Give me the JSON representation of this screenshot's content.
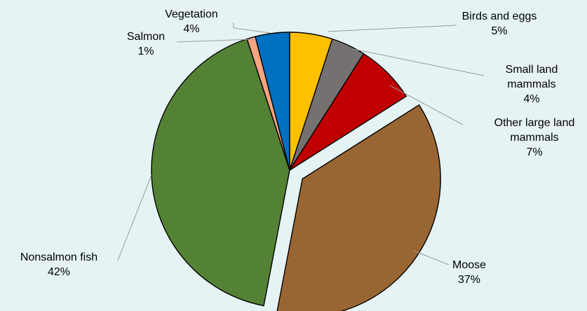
{
  "chart_data": {
    "type": "pie",
    "title": "",
    "unit": "%",
    "slices": [
      {
        "name": "Birds and eggs",
        "value": 5,
        "label_line1": "Birds and eggs",
        "label_line2": "",
        "pct_label": "5%",
        "color": "#ffc000",
        "exploded": false
      },
      {
        "name": "Small land mammals",
        "value": 4,
        "label_line1": "Small land",
        "label_line2": "mammals",
        "pct_label": "4%",
        "color": "#767171",
        "exploded": false
      },
      {
        "name": "Other large land mammals",
        "value": 7,
        "label_line1": "Other large land",
        "label_line2": "mammals",
        "pct_label": "7%",
        "color": "#c00000",
        "exploded": false
      },
      {
        "name": "Moose",
        "value": 37,
        "label_line1": "Moose",
        "label_line2": "",
        "pct_label": "37%",
        "color": "#996633",
        "exploded": true
      },
      {
        "name": "Nonsalmon fish",
        "value": 42,
        "label_line1": "Nonsalmon fish",
        "label_line2": "",
        "pct_label": "42%",
        "color": "#548235",
        "exploded": false
      },
      {
        "name": "Salmon",
        "value": 1,
        "label_line1": "Salmon",
        "label_line2": "",
        "pct_label": "1%",
        "color": "#f4a582",
        "exploded": false
      },
      {
        "name": "Vegetation",
        "value": 4,
        "label_line1": "Vegetation",
        "label_line2": "",
        "pct_label": "4%",
        "color": "#0070c0",
        "exploded": false
      }
    ],
    "legend": "none",
    "background": "#e6f3f5"
  }
}
